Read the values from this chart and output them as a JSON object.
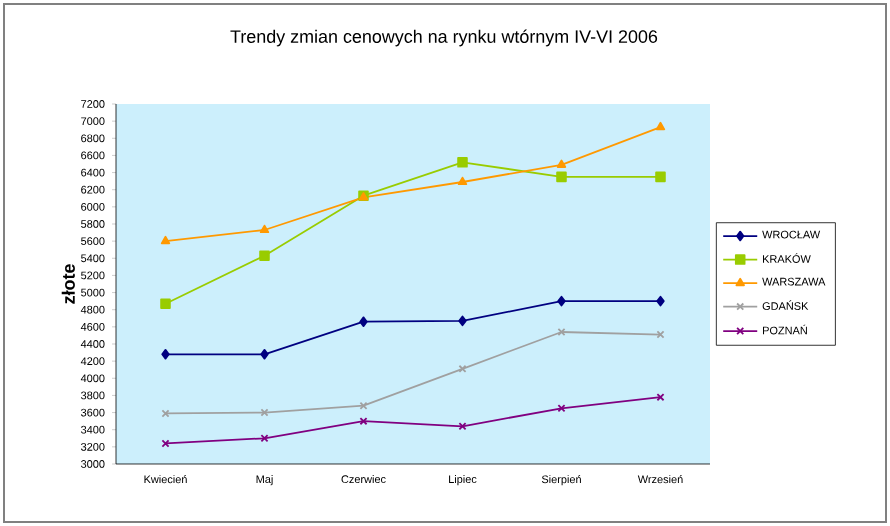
{
  "chart_data": {
    "type": "line",
    "title": "Trendy zmian cenowych na rynku wtórnym IV-VI 2006",
    "ylabel": "złote",
    "categories": [
      "Kwiecień",
      "Maj",
      "Czerwiec",
      "Lipiec",
      "Sierpień",
      "Wrzesień"
    ],
    "series": [
      {
        "name": "WROCŁAW",
        "color": "#000080",
        "marker": "diamond",
        "values": [
          4280,
          4280,
          4660,
          4670,
          4900,
          4900
        ]
      },
      {
        "name": "KRAKÓW",
        "color": "#99cc00",
        "marker": "square",
        "values": [
          4870,
          5430,
          6130,
          6520,
          6350,
          6350
        ]
      },
      {
        "name": "WARSZAWA",
        "color": "#ff9900",
        "marker": "triangle",
        "values": [
          5600,
          5730,
          6110,
          6290,
          6490,
          6930
        ]
      },
      {
        "name": "GDAŃSK",
        "color": "#a0a0a0",
        "marker": "cross",
        "values": [
          3590,
          3600,
          3680,
          4110,
          4540,
          4510
        ]
      },
      {
        "name": "POZNAŃ",
        "color": "#800080",
        "marker": "cross",
        "values": [
          3240,
          3300,
          3500,
          3440,
          3650,
          3780
        ]
      }
    ],
    "ylim": [
      3000,
      7200
    ],
    "yticks": [
      3000,
      3200,
      3400,
      3600,
      3800,
      4000,
      4200,
      4400,
      4600,
      4800,
      5000,
      5200,
      5400,
      5600,
      5800,
      6000,
      6200,
      6400,
      6600,
      6800,
      7000,
      7200
    ],
    "grid": false,
    "legend": "right",
    "line_style": "solid"
  }
}
